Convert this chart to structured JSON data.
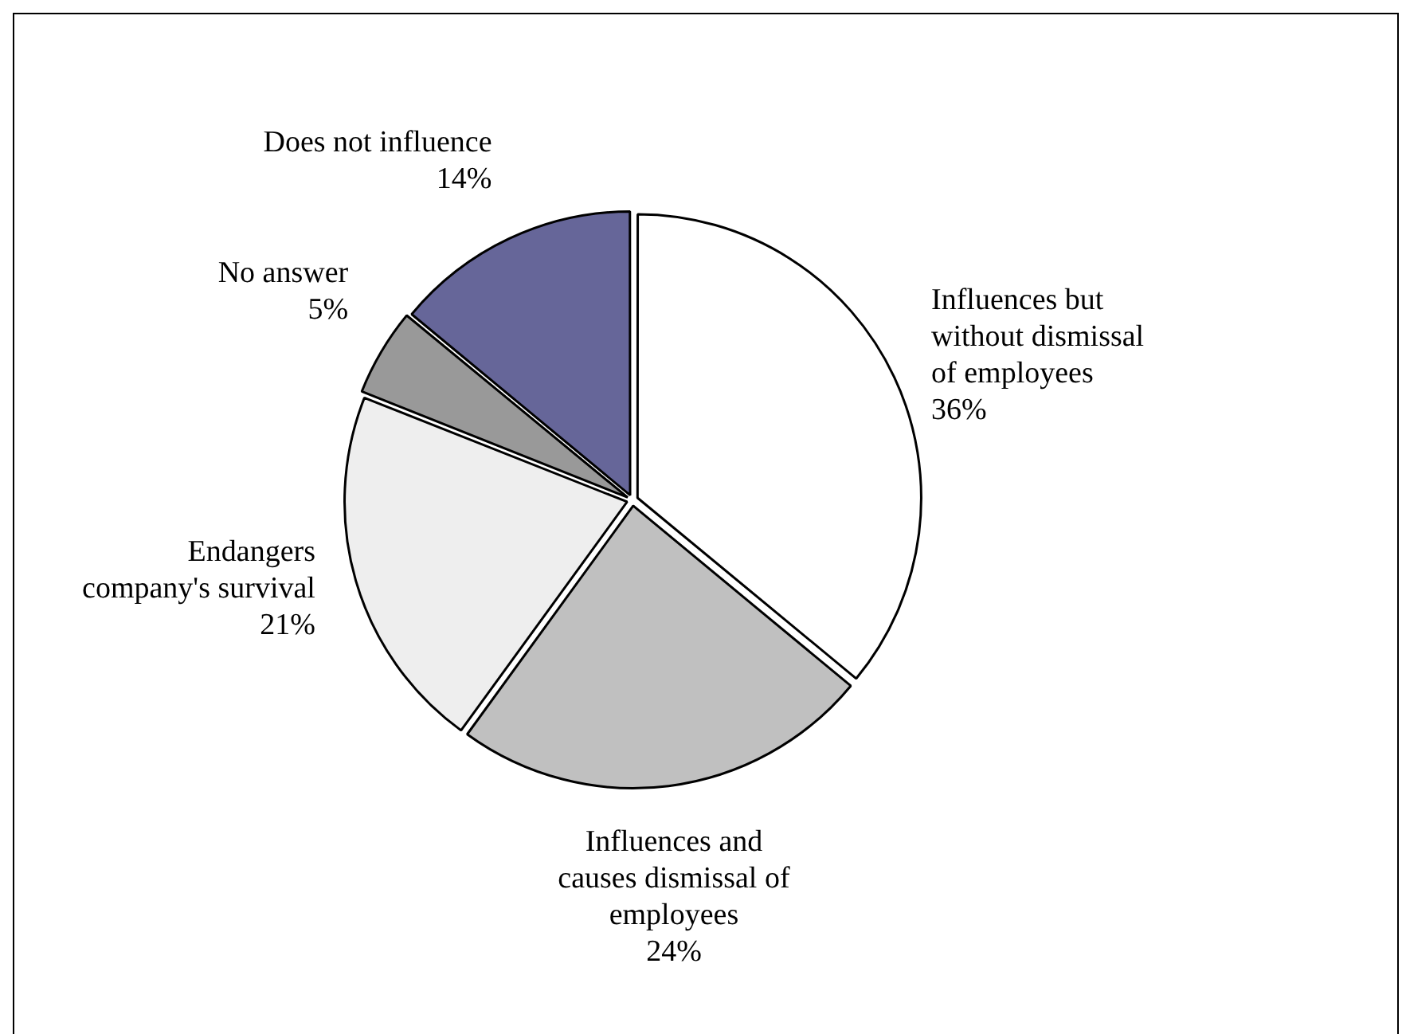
{
  "chart_data": {
    "type": "pie",
    "categories": [
      "Influences but without dismissal of employees",
      "Influences and causes dismissal of employees",
      "Endangers company's survival",
      "No answer",
      "Does not influence"
    ],
    "values": [
      36,
      24,
      21,
      5,
      14
    ],
    "value_labels": [
      "36%",
      "24%",
      "21%",
      "5%",
      "14%"
    ],
    "colors": [
      "#ffffff",
      "#c0c0c0",
      "#eeeeee",
      "#999999",
      "#666699"
    ],
    "legend": false
  }
}
